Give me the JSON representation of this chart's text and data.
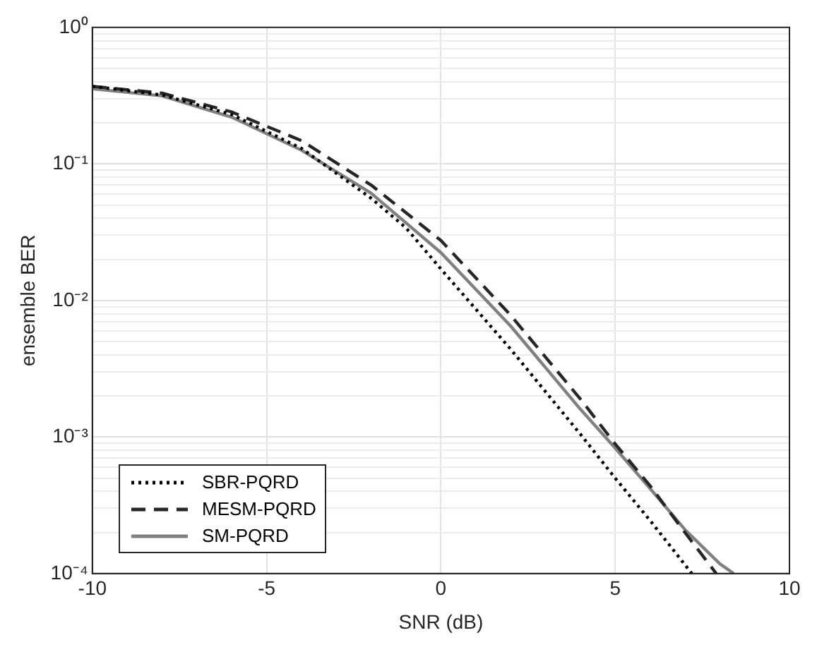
{
  "chart_data": {
    "type": "line",
    "xlabel": "SNR (dB)",
    "ylabel": "ensemble BER",
    "log": "y",
    "grid": true,
    "legend": "bottom left",
    "marker": "none",
    "xlim": [
      -10,
      10
    ],
    "xticks": [
      -10,
      -5,
      0,
      5,
      10
    ],
    "ylim": [
      0.0001,
      1
    ],
    "yticks": [
      {
        "value": 0.0001,
        "label": "10⁻⁴"
      },
      {
        "value": 0.0002,
        "label": null
      },
      {
        "value": 0.0003,
        "label": null
      },
      {
        "value": 0.0004,
        "label": null
      },
      {
        "value": 0.0005,
        "label": null
      },
      {
        "value": 0.0006,
        "label": null
      },
      {
        "value": 0.0007,
        "label": null
      },
      {
        "value": 0.0008,
        "label": null
      },
      {
        "value": 0.0009,
        "label": null
      },
      {
        "value": 0.001,
        "label": "10⁻³"
      },
      {
        "value": 0.002,
        "label": null
      },
      {
        "value": 0.003,
        "label": null
      },
      {
        "value": 0.004,
        "label": null
      },
      {
        "value": 0.005,
        "label": null
      },
      {
        "value": 0.006,
        "label": null
      },
      {
        "value": 0.007,
        "label": null
      },
      {
        "value": 0.008,
        "label": null
      },
      {
        "value": 0.009,
        "label": null
      },
      {
        "value": 0.01,
        "label": "10⁻²"
      },
      {
        "value": 0.02,
        "label": null
      },
      {
        "value": 0.03,
        "label": null
      },
      {
        "value": 0.04,
        "label": null
      },
      {
        "value": 0.05,
        "label": null
      },
      {
        "value": 0.06,
        "label": null
      },
      {
        "value": 0.07,
        "label": null
      },
      {
        "value": 0.08,
        "label": null
      },
      {
        "value": 0.09,
        "label": null
      },
      {
        "value": 0.1,
        "label": "10⁻¹"
      },
      {
        "value": 0.2,
        "label": null
      },
      {
        "value": 0.3,
        "label": null
      },
      {
        "value": 0.4,
        "label": null
      },
      {
        "value": 0.5,
        "label": null
      },
      {
        "value": 0.6,
        "label": null
      },
      {
        "value": 0.7,
        "label": null
      },
      {
        "value": 0.8,
        "label": null
      },
      {
        "value": 0.9,
        "label": null
      },
      {
        "value": 1,
        "label": "10⁰"
      }
    ],
    "series": [
      {
        "name": "SBR-PQRD",
        "color": "#000000",
        "line_style": "dotted",
        "x": [
          -10,
          -8,
          -6,
          -4,
          -2,
          -1,
          0,
          2,
          4,
          5,
          6,
          7.2
        ],
        "values": [
          0.37,
          0.32,
          0.23,
          0.13,
          0.056,
          0.034,
          0.017,
          0.0044,
          0.00105,
          0.0005,
          0.000245,
          0.0001
        ]
      },
      {
        "name": "MESM-PQRD",
        "color": "#262626",
        "line_style": "dashed",
        "x": [
          -10,
          -8,
          -6,
          -4,
          -2,
          0,
          2,
          4,
          5,
          6,
          7,
          7.9
        ],
        "values": [
          0.37,
          0.33,
          0.24,
          0.148,
          0.07,
          0.0275,
          0.0078,
          0.0019,
          0.00089,
          0.00044,
          0.0002,
          0.0001
        ]
      },
      {
        "name": "SM-PQRD",
        "color": "#808080",
        "line_style": "solid",
        "x": [
          -10,
          -8,
          -6,
          -4,
          -2,
          0,
          2,
          4,
          5,
          6,
          7,
          8,
          8.4
        ],
        "values": [
          0.355,
          0.315,
          0.22,
          0.126,
          0.061,
          0.0224,
          0.0065,
          0.0016,
          0.00083,
          0.00042,
          0.00021,
          0.000118,
          0.0001
        ]
      }
    ]
  }
}
